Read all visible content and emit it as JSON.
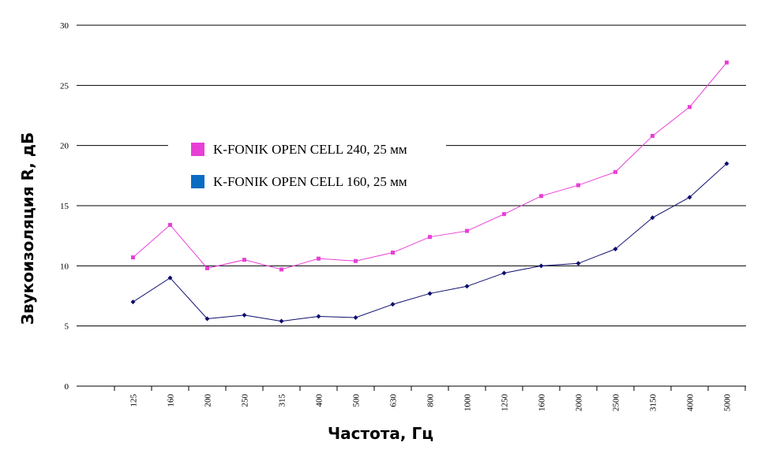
{
  "chart_data": {
    "type": "line",
    "xlabel": "Частота, Гц",
    "ylabel": "Звукоизоляция R, дБ",
    "ylim": [
      0,
      30
    ],
    "yticks": [
      0,
      5,
      10,
      15,
      20,
      25,
      30
    ],
    "grid": true,
    "legend_position": "upper-left",
    "categories": [
      "125",
      "160",
      "200",
      "250",
      "315",
      "400",
      "500",
      "630",
      "800",
      "1000",
      "1250",
      "1600",
      "2000",
      "2500",
      "3150",
      "4000",
      "5000"
    ],
    "series": [
      {
        "name": "K-FONIK OPEN CELL 240, 25 мм",
        "color": "#e83fd6",
        "marker": "square",
        "values": [
          10.7,
          13.4,
          9.8,
          10.5,
          9.7,
          10.6,
          10.4,
          11.1,
          12.4,
          12.9,
          14.3,
          15.8,
          16.7,
          17.8,
          20.8,
          23.2,
          26.9
        ]
      },
      {
        "name": "K-FONIK OPEN CELL 160, 25 мм",
        "color": "#0c0c6e",
        "legend_color": "#0a6bc2",
        "marker": "diamond",
        "values": [
          7.0,
          9.0,
          5.6,
          5.9,
          5.4,
          5.8,
          5.7,
          6.8,
          7.7,
          8.3,
          9.4,
          10.0,
          10.2,
          11.4,
          14.0,
          15.7,
          18.5
        ]
      }
    ]
  }
}
